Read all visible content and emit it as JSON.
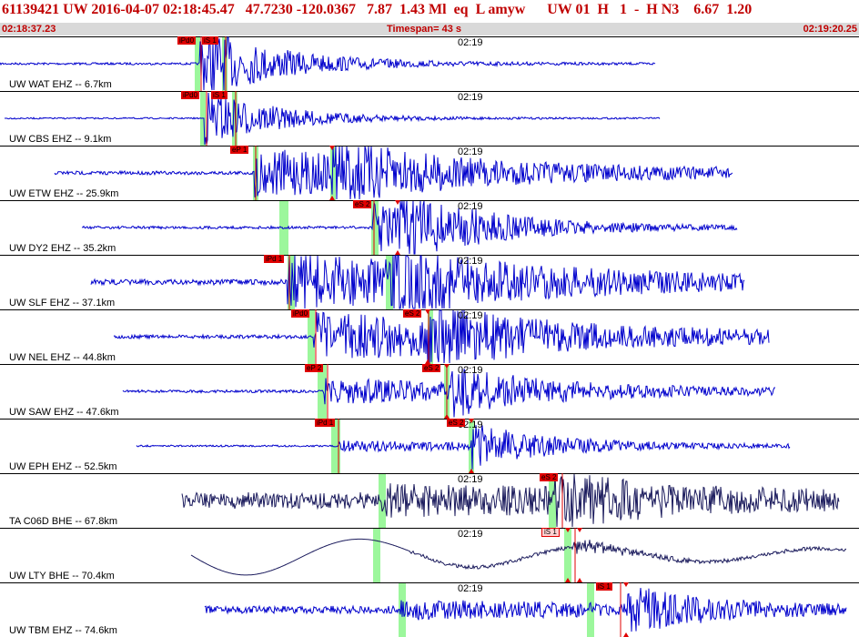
{
  "header": {
    "title": "61139421 UW 2016-04-07 02:18:45.47   47.7230 -120.0367   7.87  1.43 Ml  eq  L amyw      UW 01  H   1  -  H N3    6.67  1.20",
    "start_time": "02:18:37.23",
    "timespan": "Timespan=  43 s",
    "end_time": "02:19:20.25"
  },
  "colors": {
    "trace": "#0000cc",
    "dark_trace": "#1a1a5c",
    "pick": "#e00000",
    "predicted": "#9cf79c",
    "time_bar": "#d9d9d9",
    "header_text": "#c00000"
  },
  "time_mark": "02:19",
  "panels": [
    {
      "label": "UW WAT EHZ -- 6.7km",
      "picks": [
        {
          "text": "iPd0"
        },
        {
          "text": "iS 1"
        }
      ]
    },
    {
      "label": "UW CBS EHZ -- 9.1km",
      "picks": [
        {
          "text": "iPd0"
        },
        {
          "text": "iS 1"
        }
      ]
    },
    {
      "label": "UW ETW EHZ -- 25.9km",
      "picks": [
        {
          "text": "eP 1"
        }
      ]
    },
    {
      "label": "UW DY2 EHZ -- 35.2km",
      "picks": [
        {
          "text": "eS 2"
        }
      ]
    },
    {
      "label": "UW SLF EHZ -- 37.1km",
      "picks": [
        {
          "text": "iPd 1"
        }
      ]
    },
    {
      "label": "UW NEL EHZ -- 44.8km",
      "picks": [
        {
          "text": "iPd0"
        },
        {
          "text": "eS 2"
        }
      ]
    },
    {
      "label": "UW SAW EHZ -- 47.6km",
      "picks": [
        {
          "text": "eP 2"
        },
        {
          "text": "eS 2"
        }
      ]
    },
    {
      "label": "UW EPH EHZ -- 52.5km",
      "picks": [
        {
          "text": "iPd 1"
        },
        {
          "text": "eS 2"
        }
      ]
    },
    {
      "label": "TA C06D BHE -- 67.8km",
      "picks": [
        {
          "text": "eS 2"
        }
      ]
    },
    {
      "label": "UW LTY BHE -- 70.4km",
      "picks": [
        {
          "text": "iS 1"
        }
      ]
    },
    {
      "label": "UW TBM EHZ -- 74.6km",
      "picks": [
        {
          "text": "iS 1"
        }
      ]
    }
  ]
}
